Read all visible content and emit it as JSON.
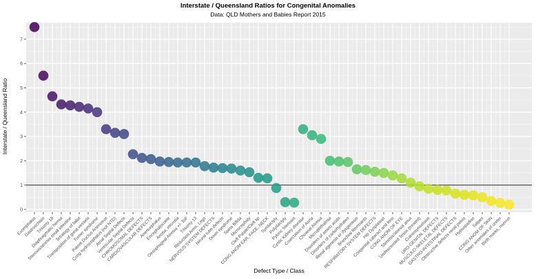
{
  "chart_data": {
    "type": "scatter",
    "title": "Interstate / Queensland Ratios for Congenital Anomalies",
    "subtitle": "Data: QLD Mothers and Babies Report 2015",
    "xlabel": "Defect Type / Class",
    "ylabel": "Interstate / Queensland Ratio",
    "ylim": [
      0,
      7.7
    ],
    "yticks": [
      0,
      1,
      2,
      3,
      4,
      5,
      6,
      7
    ],
    "reference_line_y": 1,
    "grid": "on",
    "legend": "none",
    "categories": [
      "Exomphalos",
      "Gastroschisis",
      "Trisomy 18",
      "Diaphragmatic hernia",
      "Stenosis/atresia small intestine",
      "Tetralogy of fallot",
      "Transposition of great vessels",
      "Turner syndrome",
      "Patent Ductus Arteriosus",
      "Cong hydrocephalus (not NTD)",
      "Atrial Septal Defects",
      "Ventricular Septal Defects",
      "CHROMOSOMAL DEFECTS",
      "CARDIOVASCULAR DEFECTS",
      "Anencephalus",
      "Encephalocoele",
      "Anotia, microtia",
      "Oesophageal Atresia +/- ToF",
      "Trisomy 13",
      "Reduction Arms, Legs",
      "NERVOUS SYSTEM DEFECTS",
      "Neural tube defects",
      "Down syndrome",
      "Spina Bifida",
      "Microcephaly",
      "Cleft Palate/Cleft lip",
      "CONG ANOM EAR, FACE, NECK",
      "Syndactyly",
      "Polydactyly",
      "Pyloric Stenosis",
      "Cystic Kidney disease",
      "Coarctation of Aorta",
      "Choanal Atresia",
      "Microphthalmia",
      "Disorders of amino acids",
      "Disorders of carbohydrates",
      "Renal agenesis or dysgenesis",
      "Branchial Remnants",
      "RESPIRATORY SYSTEM DEFECTS",
      "Hip Dysplasias",
      "Congenital cataract and lens",
      "CONG ANOM OF EYE",
      "Stenosis/atresia anus",
      "Undescended Testis (treated)",
      "Craniosynostosis",
      "URO-GENITAL DEFECTS",
      "MUSCULO-SKELETAL DEFECTS",
      "GASTRO-INTESTINAL DEFECTS",
      "Obstructive defects renal pelvis",
      "Hypospadias",
      "Talipes",
      "CONG ANOM OF SKIN",
      "Other anomalies of ureter",
      "Birth marks, naevus"
    ],
    "values": [
      7.5,
      5.5,
      4.65,
      4.32,
      4.28,
      4.22,
      4.15,
      4.0,
      3.3,
      3.15,
      3.1,
      2.27,
      2.12,
      2.07,
      1.97,
      1.95,
      1.93,
      1.93,
      1.93,
      1.78,
      1.72,
      1.7,
      1.68,
      1.6,
      1.53,
      1.3,
      1.28,
      0.88,
      0.3,
      0.28,
      3.3,
      3.05,
      2.9,
      2.0,
      1.97,
      1.95,
      1.65,
      1.62,
      1.55,
      1.5,
      1.4,
      1.28,
      1.1,
      0.95,
      0.85,
      0.8,
      0.78,
      0.65,
      0.6,
      0.58,
      0.5,
      0.35,
      0.27,
      0.2
    ]
  },
  "colors": {
    "panel_background": "#ebebeb",
    "grid_major": "#ffffff",
    "grid_minor": "#f7f7f7",
    "reference_line": "#3c3c3c",
    "tick_label": "#4d4d4d",
    "tick_mark": "#333333",
    "point_opacity": 0.85,
    "viridis_palette": [
      "#440154",
      "#482878",
      "#3e4a89",
      "#31688e",
      "#26828e",
      "#1f9e89",
      "#35b779",
      "#6ece58",
      "#b5de2b",
      "#dce319",
      "#fde725"
    ]
  }
}
